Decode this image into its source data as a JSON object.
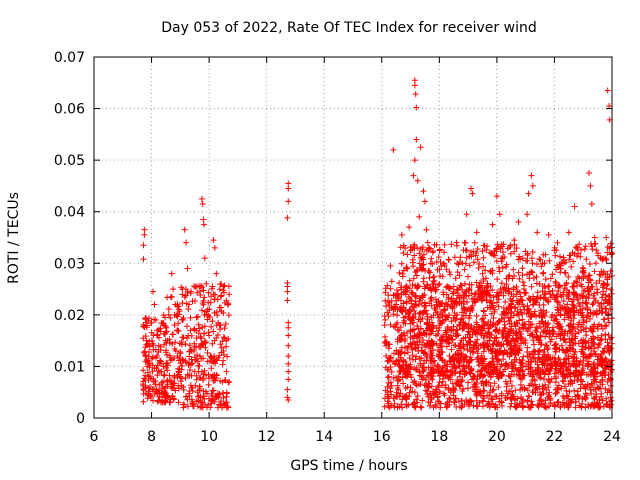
{
  "chart_data": {
    "type": "scatter",
    "title": "Day 053 of 2022, Rate Of TEC Index for receiver wind",
    "xlabel": "GPS time / hours",
    "ylabel": "ROTI / TECUs",
    "xlim": [
      6,
      24
    ],
    "ylim": [
      0,
      0.07
    ],
    "x_ticks": [
      6,
      8,
      10,
      12,
      14,
      16,
      18,
      20,
      22,
      24
    ],
    "x_tick_labels": [
      "6",
      "8",
      "10",
      "12",
      "14",
      "16",
      "18",
      "20",
      "22",
      "24"
    ],
    "y_ticks": [
      0,
      0.01,
      0.02,
      0.03,
      0.04,
      0.05,
      0.06,
      0.07
    ],
    "y_tick_labels": [
      "0",
      "0.01",
      "0.02",
      "0.03",
      "0.04",
      "0.05",
      "0.06",
      "0.07"
    ],
    "grid": true,
    "marker": "+",
    "marker_color": "#ff0000",
    "series": [
      {
        "name": "ROTI",
        "color": "#ff0000",
        "points": [
          [
            7.75,
            0.0365
          ],
          [
            7.75,
            0.0355
          ],
          [
            7.72,
            0.0335
          ],
          [
            7.72,
            0.0308
          ],
          [
            7.8,
            0.0185
          ],
          [
            7.82,
            0.015
          ],
          [
            7.78,
            0.012
          ],
          [
            7.85,
            0.01
          ],
          [
            7.9,
            0.008
          ],
          [
            7.95,
            0.006
          ],
          [
            8.05,
            0.0245
          ],
          [
            8.1,
            0.022
          ],
          [
            8.15,
            0.019
          ],
          [
            8.2,
            0.016
          ],
          [
            8.25,
            0.014
          ],
          [
            8.3,
            0.011
          ],
          [
            8.35,
            0.009
          ],
          [
            8.4,
            0.007
          ],
          [
            8.45,
            0.005
          ],
          [
            8.5,
            0.004
          ],
          [
            8.55,
            0.015
          ],
          [
            8.6,
            0.02
          ],
          [
            8.7,
            0.028
          ],
          [
            8.75,
            0.025
          ],
          [
            8.8,
            0.018
          ],
          [
            8.9,
            0.012
          ],
          [
            9.0,
            0.008
          ],
          [
            9.1,
            0.006
          ],
          [
            9.15,
            0.0365
          ],
          [
            9.2,
            0.034
          ],
          [
            9.25,
            0.029
          ],
          [
            9.3,
            0.022
          ],
          [
            9.35,
            0.017
          ],
          [
            9.4,
            0.013
          ],
          [
            9.5,
            0.009
          ],
          [
            9.6,
            0.005
          ],
          [
            9.7,
            0.004
          ],
          [
            9.75,
            0.0425
          ],
          [
            9.78,
            0.0415
          ],
          [
            9.8,
            0.0385
          ],
          [
            9.82,
            0.0375
          ],
          [
            9.85,
            0.031
          ],
          [
            9.9,
            0.026
          ],
          [
            9.95,
            0.021
          ],
          [
            10.0,
            0.016
          ],
          [
            10.05,
            0.012
          ],
          [
            10.1,
            0.008
          ],
          [
            10.15,
            0.0345
          ],
          [
            10.2,
            0.033
          ],
          [
            10.25,
            0.028
          ],
          [
            10.3,
            0.023
          ],
          [
            10.4,
            0.018
          ],
          [
            10.5,
            0.013
          ],
          [
            10.6,
            0.009
          ],
          [
            10.65,
            0.022
          ],
          [
            10.7,
            0.007
          ],
          [
            12.75,
            0.0455
          ],
          [
            12.75,
            0.0445
          ],
          [
            12.75,
            0.042
          ],
          [
            12.72,
            0.0388
          ],
          [
            12.72,
            0.0262
          ],
          [
            12.72,
            0.0255
          ],
          [
            12.72,
            0.0245
          ],
          [
            12.72,
            0.0228
          ],
          [
            12.75,
            0.0185
          ],
          [
            12.75,
            0.0175
          ],
          [
            12.75,
            0.016
          ],
          [
            12.75,
            0.014
          ],
          [
            12.75,
            0.012
          ],
          [
            12.75,
            0.0105
          ],
          [
            12.75,
            0.009
          ],
          [
            12.75,
            0.0075
          ],
          [
            12.72,
            0.0055
          ],
          [
            12.72,
            0.004
          ],
          [
            12.75,
            0.0035
          ],
          [
            16.1,
            0.018
          ],
          [
            16.15,
            0.014
          ],
          [
            16.2,
            0.011
          ],
          [
            16.25,
            0.008
          ],
          [
            16.3,
            0.0295
          ],
          [
            16.35,
            0.0265
          ],
          [
            16.4,
            0.052
          ],
          [
            16.5,
            0.022
          ],
          [
            16.6,
            0.017
          ],
          [
            16.7,
            0.0355
          ],
          [
            16.75,
            0.032
          ],
          [
            16.85,
            0.029
          ],
          [
            16.95,
            0.037
          ],
          [
            17.0,
            0.0325
          ],
          [
            17.1,
            0.047
          ],
          [
            17.15,
            0.0655
          ],
          [
            17.15,
            0.0645
          ],
          [
            17.18,
            0.0628
          ],
          [
            17.2,
            0.0602
          ],
          [
            17.2,
            0.054
          ],
          [
            17.15,
            0.05
          ],
          [
            17.25,
            0.046
          ],
          [
            17.35,
            0.0525
          ],
          [
            17.3,
            0.039
          ],
          [
            17.45,
            0.044
          ],
          [
            17.5,
            0.042
          ],
          [
            17.55,
            0.0365
          ],
          [
            17.6,
            0.034
          ],
          [
            17.7,
            0.03
          ],
          [
            17.8,
            0.026
          ],
          [
            17.9,
            0.022
          ],
          [
            18.0,
            0.018
          ],
          [
            18.1,
            0.015
          ],
          [
            18.2,
            0.011
          ],
          [
            18.3,
            0.008
          ],
          [
            18.4,
            0.005
          ],
          [
            18.5,
            0.0255
          ],
          [
            18.6,
            0.034
          ],
          [
            18.8,
            0.03
          ],
          [
            18.95,
            0.0395
          ],
          [
            19.1,
            0.0445
          ],
          [
            19.15,
            0.0435
          ],
          [
            19.3,
            0.036
          ],
          [
            19.5,
            0.028
          ],
          [
            19.7,
            0.024
          ],
          [
            19.85,
            0.0375
          ],
          [
            20.0,
            0.043
          ],
          [
            20.1,
            0.0395
          ],
          [
            20.2,
            0.031
          ],
          [
            20.4,
            0.027
          ],
          [
            20.6,
            0.0345
          ],
          [
            20.75,
            0.038
          ],
          [
            20.9,
            0.031
          ],
          [
            21.05,
            0.0395
          ],
          [
            21.1,
            0.0435
          ],
          [
            21.2,
            0.047
          ],
          [
            21.25,
            0.045
          ],
          [
            21.4,
            0.036
          ],
          [
            21.6,
            0.028
          ],
          [
            21.8,
            0.0355
          ],
          [
            22.0,
            0.0325
          ],
          [
            22.2,
            0.0295
          ],
          [
            22.5,
            0.036
          ],
          [
            22.7,
            0.041
          ],
          [
            22.8,
            0.033
          ],
          [
            23.0,
            0.029
          ],
          [
            23.2,
            0.0475
          ],
          [
            23.25,
            0.045
          ],
          [
            23.3,
            0.0415
          ],
          [
            23.4,
            0.035
          ],
          [
            23.6,
            0.031
          ],
          [
            23.85,
            0.0635
          ],
          [
            23.9,
            0.0605
          ],
          [
            23.92,
            0.0578
          ],
          [
            23.8,
            0.035
          ],
          [
            23.7,
            0.026
          ],
          [
            23.95,
            0.004
          ],
          [
            23.85,
            0.007
          ],
          [
            23.6,
            0.012
          ],
          [
            23.3,
            0.015
          ],
          [
            23.0,
            0.019
          ],
          [
            22.6,
            0.021
          ],
          [
            22.3,
            0.016
          ],
          [
            22.0,
            0.011
          ],
          [
            21.7,
            0.009
          ],
          [
            21.3,
            0.013
          ],
          [
            20.9,
            0.018
          ],
          [
            20.5,
            0.022
          ],
          [
            20.1,
            0.014
          ],
          [
            19.7,
            0.01
          ],
          [
            19.3,
            0.006
          ],
          [
            18.9,
            0.012
          ],
          [
            18.5,
            0.017
          ],
          [
            18.1,
            0.02
          ],
          [
            17.7,
            0.013
          ],
          [
            17.3,
            0.009
          ],
          [
            16.9,
            0.006
          ]
        ],
        "clusters": [
          {
            "x": [
              7.7,
              8.5
            ],
            "y": [
              0.003,
              0.02
            ]
          },
          {
            "x": [
              8.5,
              9.0
            ],
            "y": [
              0.003,
              0.024
            ]
          },
          {
            "x": [
              9.0,
              10.7
            ],
            "y": [
              0.002,
              0.026
            ]
          },
          {
            "x": [
              16.1,
              24.0
            ],
            "y": [
              0.002,
              0.026
            ]
          },
          {
            "x": [
              16.5,
              24.0
            ],
            "y": [
              0.008,
              0.034
            ]
          }
        ]
      }
    ]
  }
}
